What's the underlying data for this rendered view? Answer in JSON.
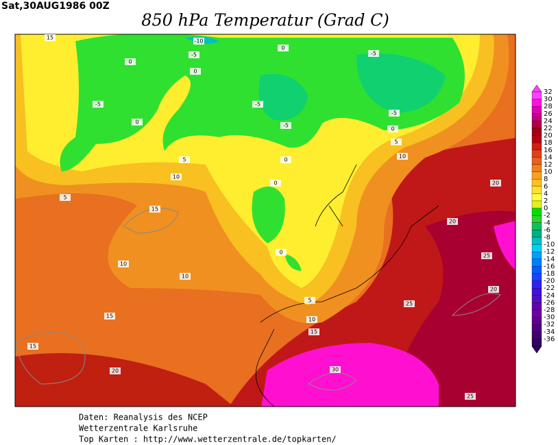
{
  "header": {
    "date": "Sat,30AUG1986 00Z",
    "title": "850 hPa Temperatur (Grad C)"
  },
  "contour_labels": [
    15,
    -10,
    -5,
    0,
    -5,
    0,
    0,
    -5,
    -5,
    -5,
    0,
    -5,
    0,
    5,
    10,
    5,
    0,
    10,
    0,
    20,
    5,
    15,
    20,
    0,
    25,
    10,
    10,
    20,
    5,
    25,
    10,
    15,
    15,
    15,
    20,
    30,
    25
  ],
  "colorbar": {
    "labels": [
      32,
      30,
      28,
      26,
      24,
      22,
      20,
      18,
      16,
      14,
      12,
      10,
      8,
      6,
      4,
      2,
      0,
      -2,
      -4,
      -6,
      -8,
      -10,
      -12,
      -14,
      -16,
      -18,
      -20,
      -22,
      -24,
      -26,
      -28,
      -30,
      -32,
      -34,
      -36
    ],
    "colors": [
      "#ff40ff",
      "#ff10e0",
      "#e000b0",
      "#c00080",
      "#b00040",
      "#a00010",
      "#b80010",
      "#d02010",
      "#e04018",
      "#e86020",
      "#f08020",
      "#f8a020",
      "#ffc020",
      "#ffe030",
      "#ffff40",
      "#e0f020",
      "#00e000",
      "#30d030",
      "#10c060",
      "#00b080",
      "#00c0c0",
      "#00d0f0",
      "#00a0ff",
      "#0080ff",
      "#0060ff",
      "#2040ff",
      "#3020f0",
      "#4010e0",
      "#5010c0",
      "#6000b0",
      "#7000a0",
      "#600090",
      "#500080",
      "#400070",
      "#300060"
    ]
  },
  "footer": [
    "Daten: Reanalysis des NCEP",
    "Wetterzentrale Karlsruhe",
    "Top Karten :  http://www.wetterzentrale.de/topkarten/"
  ]
}
